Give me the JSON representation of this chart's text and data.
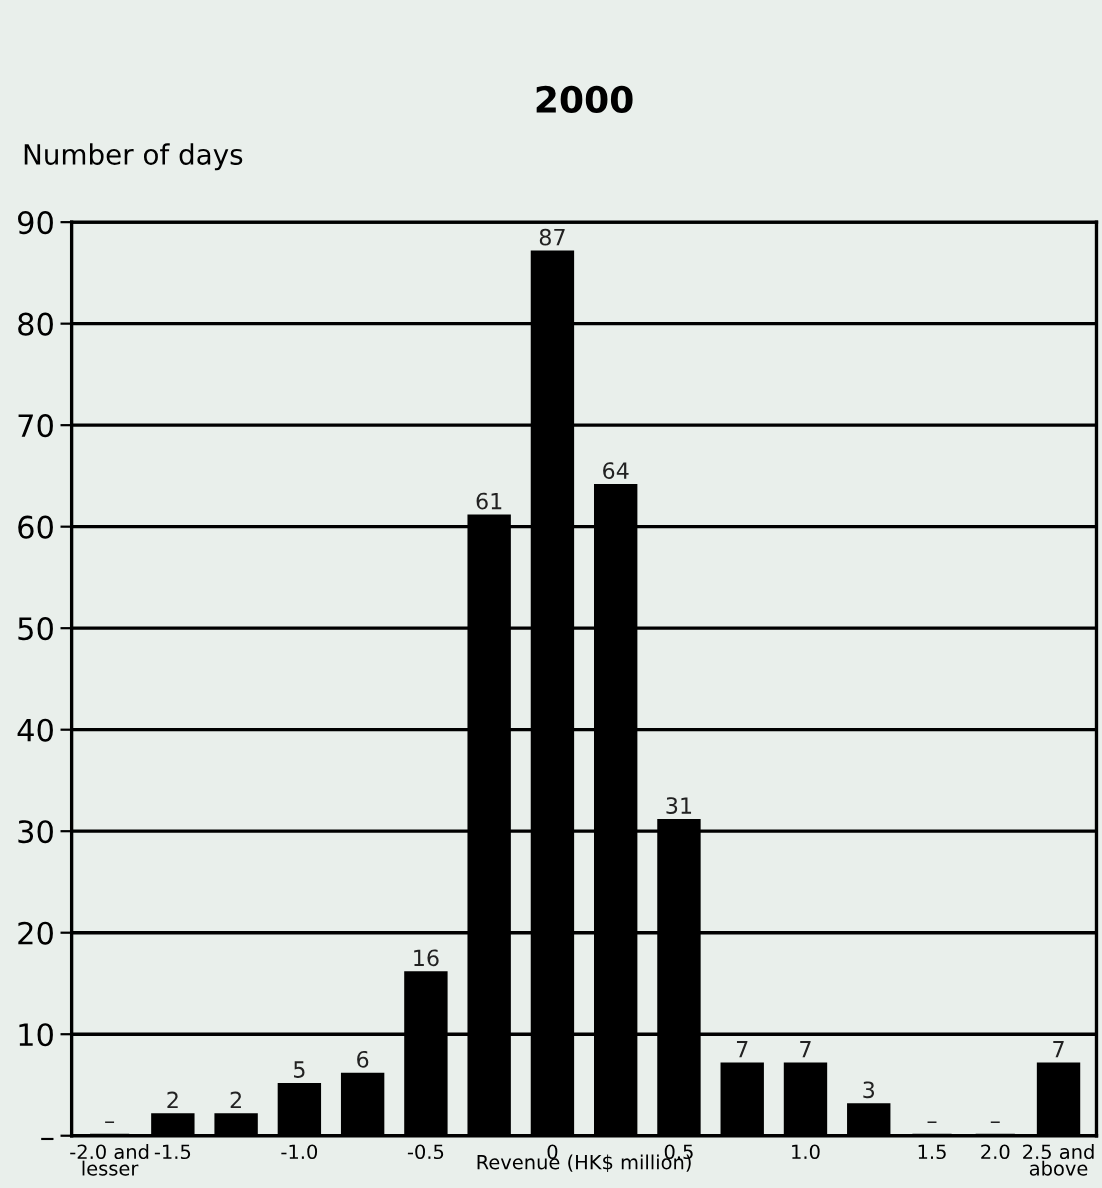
{
  "chart_data": {
    "type": "bar",
    "title": "2000",
    "ylabel": "Number of days",
    "xlabel": "Revenue (HK$ million)",
    "categories": [
      "-2.0 and\nlesser",
      "-1.5",
      null,
      "-1.0",
      null,
      "-0.5",
      null,
      "0",
      null,
      "0.5",
      null,
      "1.0",
      null,
      "1.5",
      "2.0",
      "2.5 and\nabove"
    ],
    "values": [
      0,
      2,
      2,
      5,
      6,
      16,
      61,
      87,
      64,
      31,
      7,
      7,
      3,
      0,
      0,
      7
    ],
    "value_labels": [
      "–",
      "2",
      "2",
      "5",
      "6",
      "16",
      "61",
      "87",
      "64",
      "31",
      "7",
      "7",
      "3",
      "–",
      "–",
      "7"
    ],
    "color": "#000000",
    "ylim": [
      0,
      90
    ],
    "yticks": [
      {
        "value": 0,
        "label": "–"
      },
      10,
      20,
      30,
      40,
      50,
      60,
      70,
      80,
      90
    ],
    "grid": "y"
  }
}
